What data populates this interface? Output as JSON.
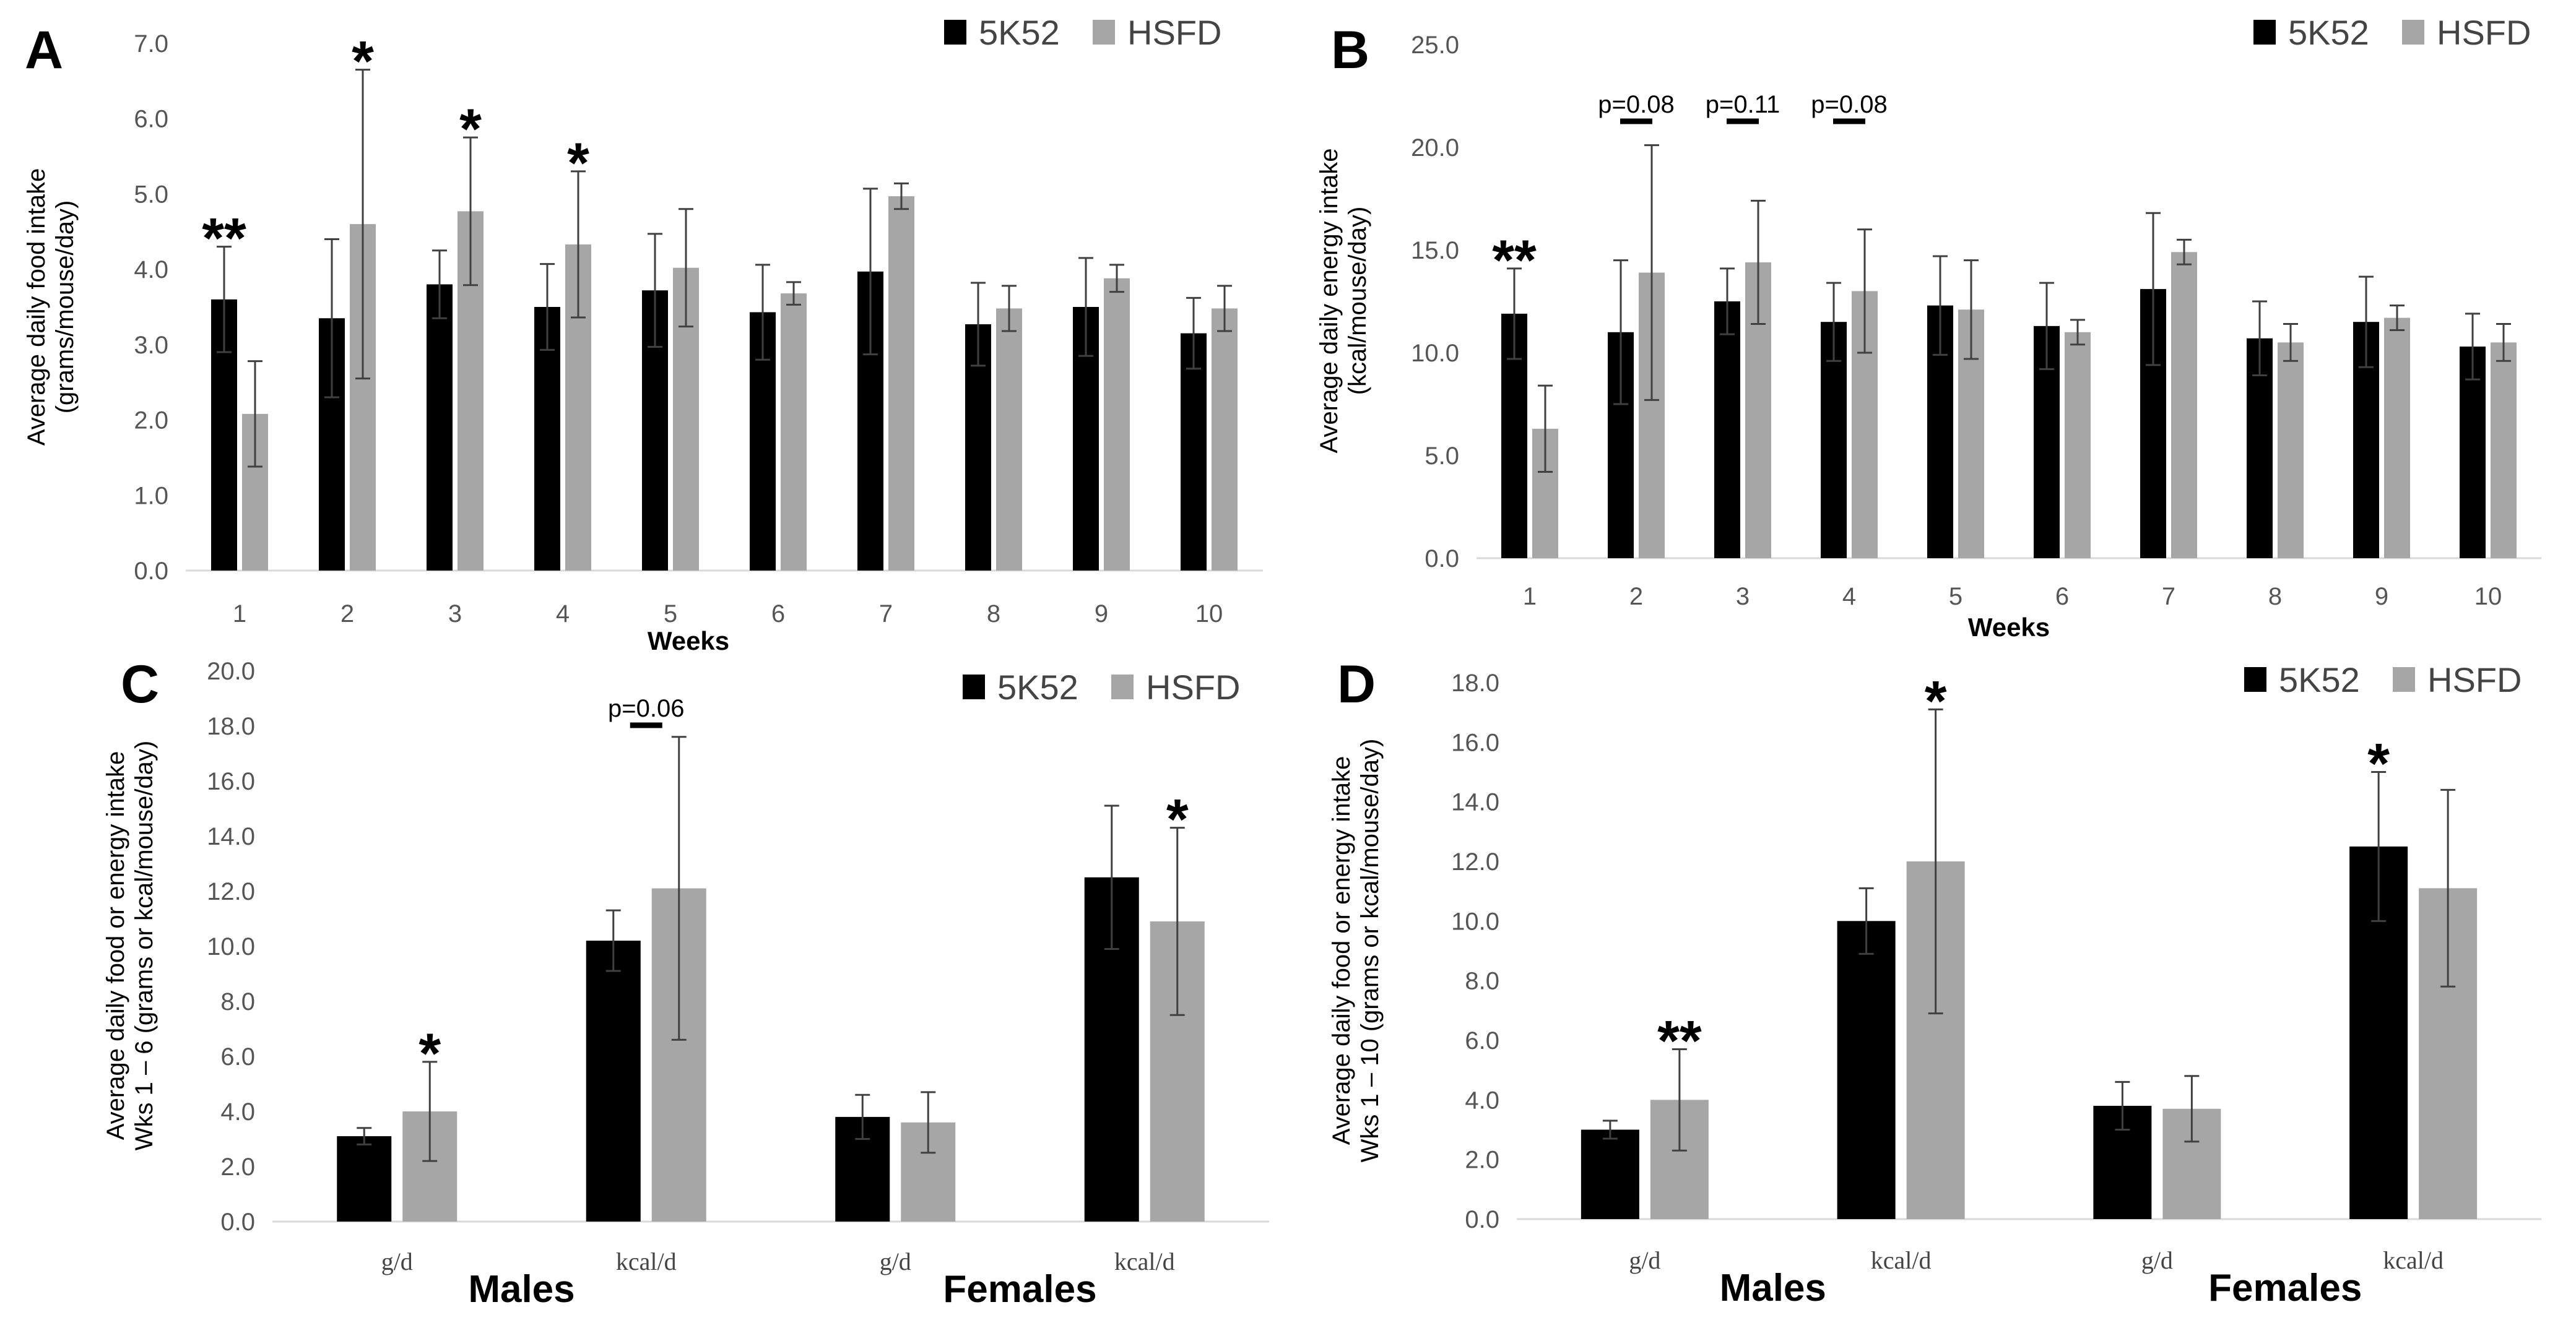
{
  "chart_data": [
    {
      "panel": "A",
      "type": "bar",
      "ylabel": [
        "Average daily food intake",
        "(grams/mouse/day)"
      ],
      "xlabel": "Weeks",
      "ylim": [
        0,
        7
      ],
      "ytick_labels": [
        "0.0",
        "1.0",
        "2.0",
        "3.0",
        "4.0",
        "5.0",
        "6.0",
        "7.0"
      ],
      "categories": [
        "1",
        "2",
        "3",
        "4",
        "5",
        "6",
        "7",
        "8",
        "9",
        "10"
      ],
      "series": [
        {
          "name": "5K52",
          "values": [
            3.6,
            3.35,
            3.8,
            3.5,
            3.72,
            3.43,
            3.97,
            3.27,
            3.5,
            3.15
          ],
          "errors": [
            0.7,
            1.05,
            0.45,
            0.57,
            0.75,
            0.63,
            1.1,
            0.55,
            0.65,
            0.47
          ]
        },
        {
          "name": "HSFD",
          "values": [
            2.08,
            4.6,
            4.77,
            4.33,
            4.02,
            3.68,
            4.97,
            3.48,
            3.88,
            3.48
          ],
          "errors": [
            0.7,
            2.05,
            0.98,
            0.97,
            0.78,
            0.15,
            0.17,
            0.3,
            0.18,
            0.3
          ]
        }
      ],
      "annotations": [
        {
          "category": "1",
          "series": "5K52",
          "text": "**"
        },
        {
          "category": "2",
          "series": "HSFD",
          "text": "*"
        },
        {
          "category": "3",
          "series": "HSFD",
          "text": "*"
        },
        {
          "category": "4",
          "series": "HSFD",
          "text": "*"
        }
      ]
    },
    {
      "panel": "B",
      "type": "bar",
      "ylabel": [
        "Average daily energy intake",
        "(kcal/mouse/day)"
      ],
      "xlabel": "Weeks",
      "ylim": [
        0,
        25
      ],
      "ytick_labels": [
        "0.0",
        "5.0",
        "10.0",
        "15.0",
        "20.0",
        "25.0"
      ],
      "categories": [
        "1",
        "2",
        "3",
        "4",
        "5",
        "6",
        "7",
        "8",
        "9",
        "10"
      ],
      "series": [
        {
          "name": "5K52",
          "values": [
            11.9,
            11.0,
            12.5,
            11.5,
            12.3,
            11.3,
            13.1,
            10.7,
            11.5,
            10.3
          ],
          "errors": [
            2.2,
            3.5,
            1.6,
            1.9,
            2.4,
            2.1,
            3.7,
            1.8,
            2.2,
            1.6
          ]
        },
        {
          "name": "HSFD",
          "values": [
            6.3,
            13.9,
            14.4,
            13.0,
            12.1,
            11.0,
            14.9,
            10.5,
            11.7,
            10.5
          ],
          "errors": [
            2.1,
            6.2,
            3.0,
            3.0,
            2.4,
            0.6,
            0.6,
            0.9,
            0.6,
            0.9
          ]
        }
      ],
      "annotations": [
        {
          "category": "1",
          "series": "5K52",
          "text": "**"
        },
        {
          "category": "2",
          "text": "p=0.08"
        },
        {
          "category": "3",
          "text": "p=0.11"
        },
        {
          "category": "4",
          "text": "p=0.08"
        }
      ]
    },
    {
      "panel": "C",
      "type": "bar",
      "ylabel": [
        "Average daily food or energy intake",
        "Wks 1 – 6 (grams or kcal/mouse/day)"
      ],
      "ylim": [
        0,
        20
      ],
      "ytick_labels": [
        "0.0",
        "2.0",
        "4.0",
        "6.0",
        "8.0",
        "10.0",
        "12.0",
        "14.0",
        "16.0",
        "18.0",
        "20.0"
      ],
      "categories": [
        "g/d",
        "kcal/d",
        "g/d",
        "kcal/d"
      ],
      "groups": [
        "Males",
        "Females"
      ],
      "series": [
        {
          "name": "5K52",
          "values": [
            3.1,
            10.2,
            3.8,
            12.5
          ],
          "errors": [
            0.3,
            1.1,
            0.8,
            2.6
          ]
        },
        {
          "name": "HSFD",
          "values": [
            4.0,
            12.1,
            3.6,
            10.9
          ],
          "errors": [
            1.8,
            5.5,
            1.1,
            3.4
          ]
        }
      ],
      "annotations": [
        {
          "category_index": 0,
          "series": "HSFD",
          "text": "*"
        },
        {
          "category_index": 1,
          "text": "p=0.06"
        },
        {
          "category_index": 3,
          "series": "HSFD",
          "text": "*"
        }
      ]
    },
    {
      "panel": "D",
      "type": "bar",
      "ylabel": [
        "Average daily food or energy intake",
        "Wks 1 – 10 (grams or kcal/mouse/day)"
      ],
      "ylim": [
        0,
        18
      ],
      "ytick_labels": [
        "0.0",
        "2.0",
        "4.0",
        "6.0",
        "8.0",
        "10.0",
        "12.0",
        "14.0",
        "16.0",
        "18.0"
      ],
      "categories": [
        "g/d",
        "kcal/d",
        "g/d",
        "kcal/d"
      ],
      "groups": [
        "Males",
        "Females"
      ],
      "series": [
        {
          "name": "5K52",
          "values": [
            3.0,
            10.0,
            3.8,
            12.5
          ],
          "errors": [
            0.3,
            1.1,
            0.8,
            2.5
          ]
        },
        {
          "name": "HSFD",
          "values": [
            4.0,
            12.0,
            3.7,
            11.1
          ],
          "errors": [
            1.7,
            5.1,
            1.1,
            3.3
          ]
        }
      ],
      "annotations": [
        {
          "category_index": 0,
          "series": "HSFD",
          "text": "**"
        },
        {
          "category_index": 1,
          "series": "HSFD",
          "text": "*"
        },
        {
          "category_index": 3,
          "series": "5K52",
          "text": "*"
        }
      ]
    }
  ],
  "colors": {
    "5K52": "#000000",
    "HSFD": "#a6a6a6",
    "axis": "#d9d9d9",
    "errorbar": "#404040"
  }
}
